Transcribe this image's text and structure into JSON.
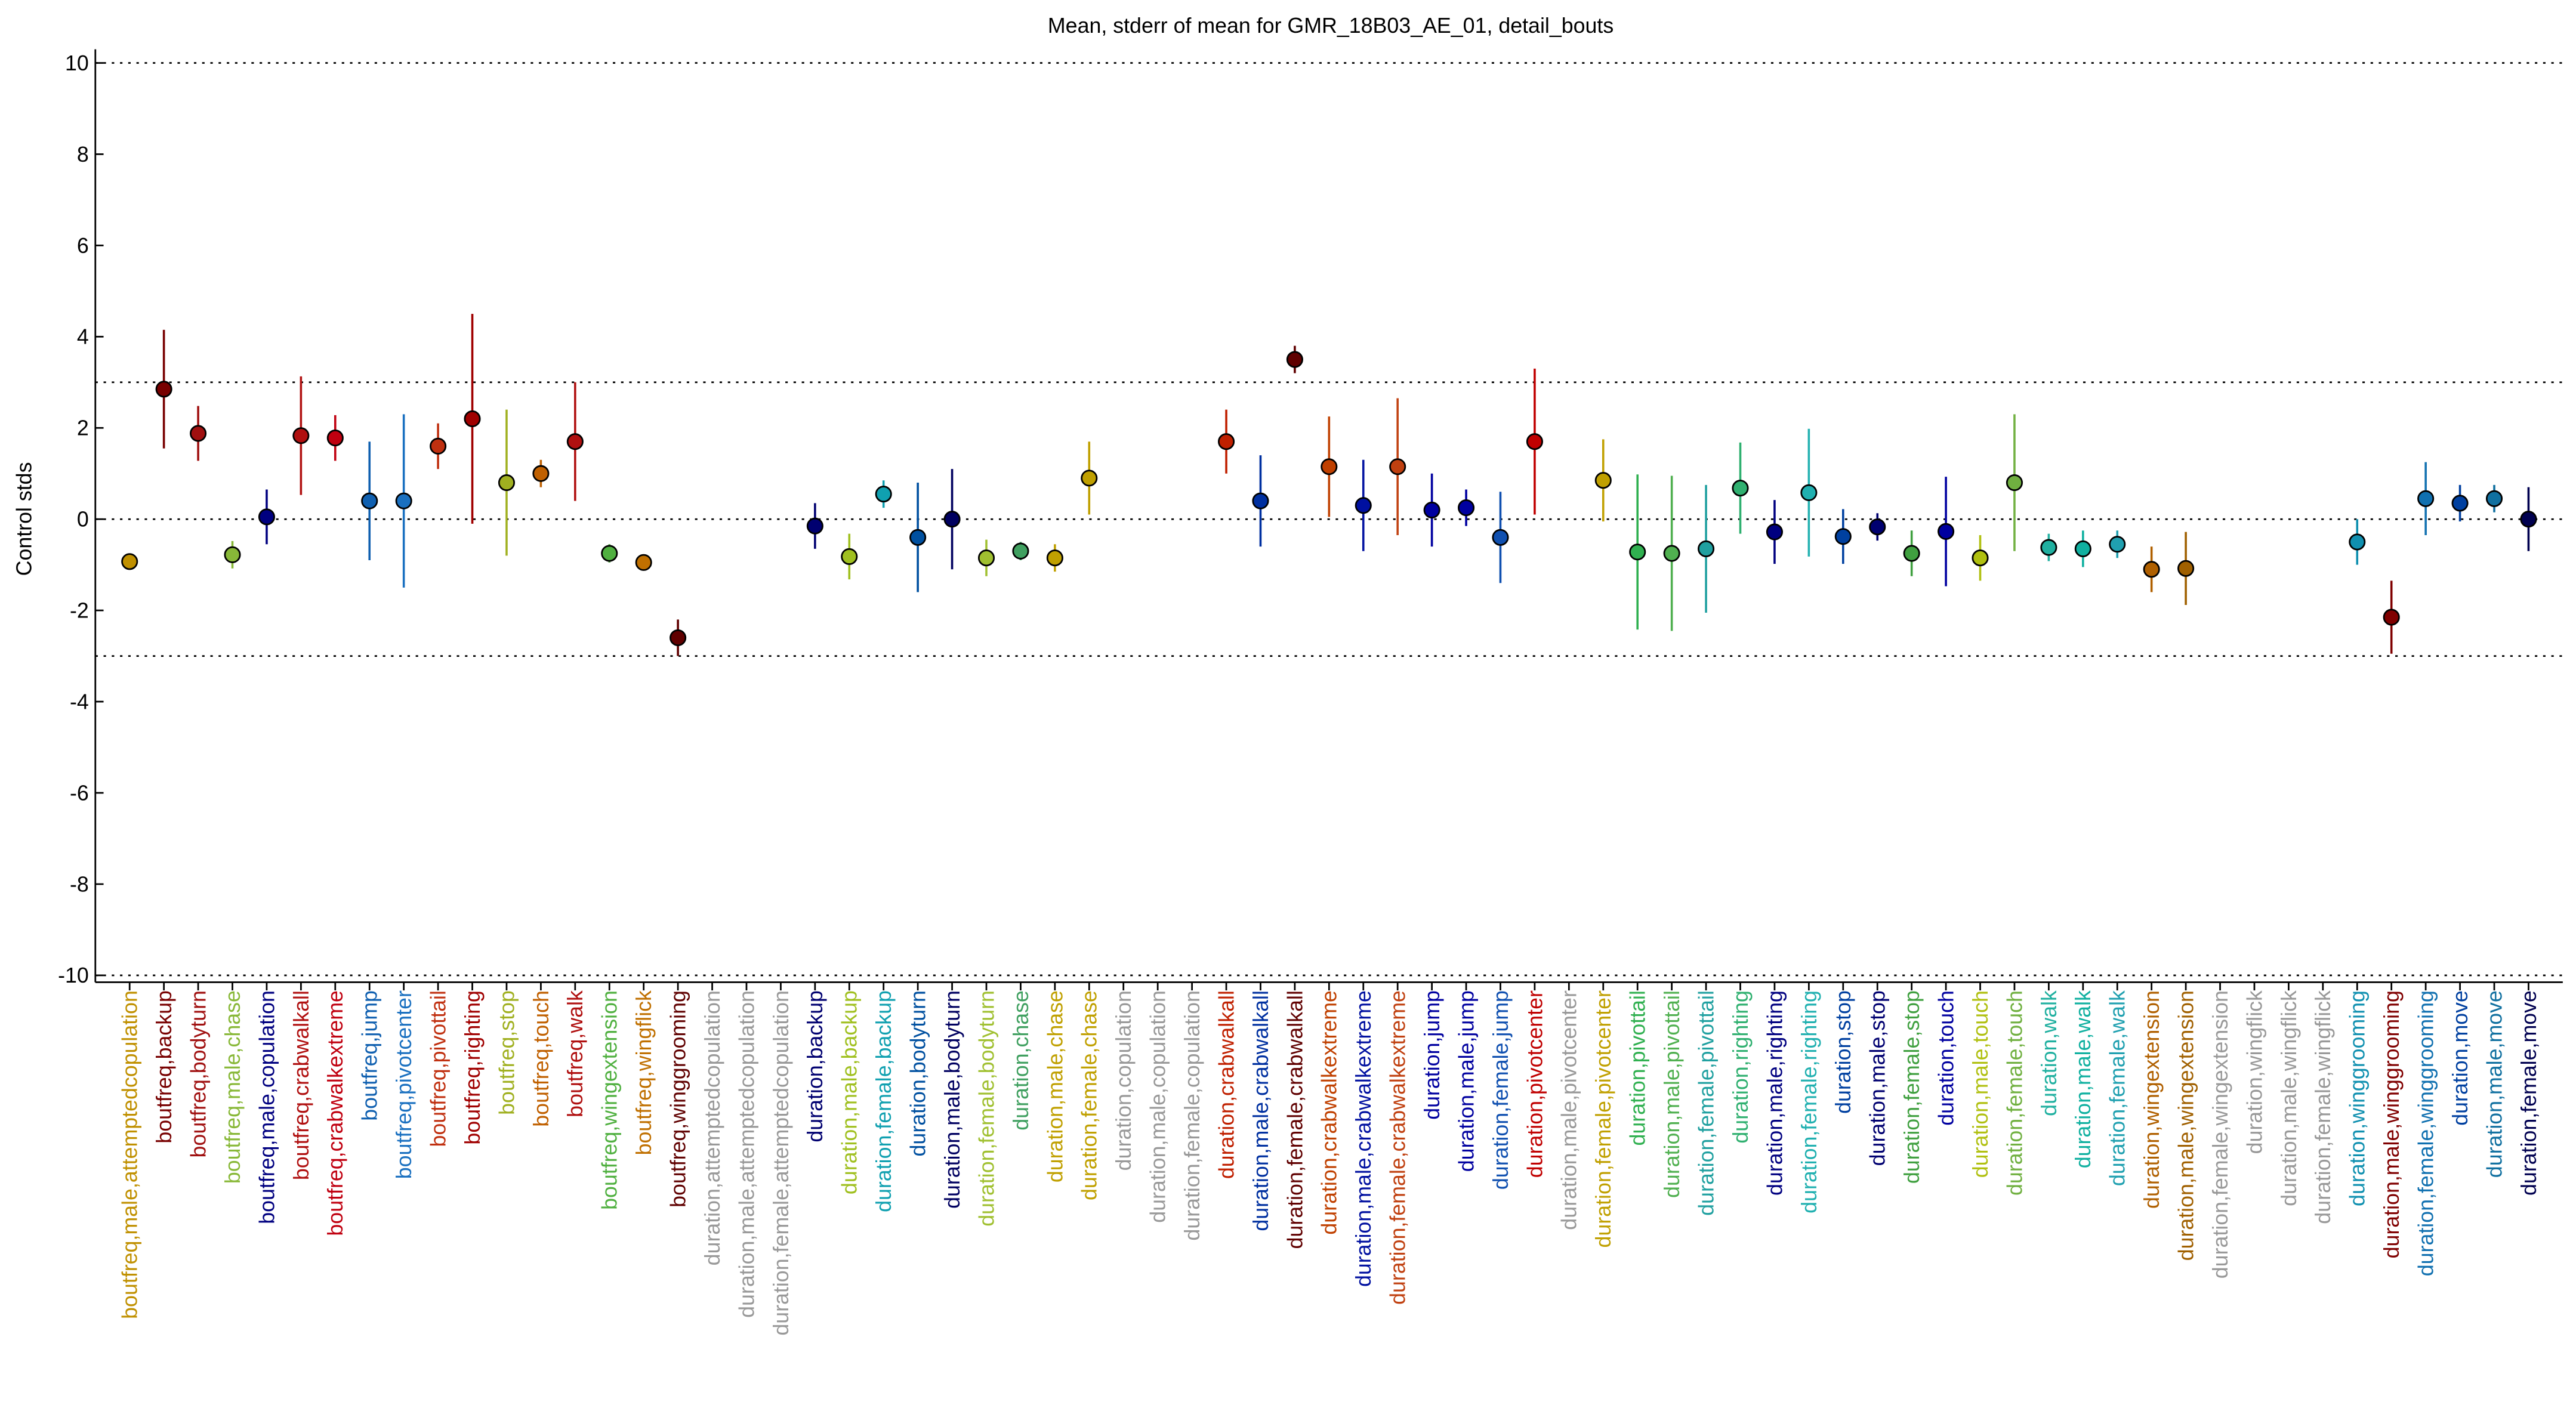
{
  "chart_data": {
    "type": "errorbar",
    "title": "Mean, stderr of mean for GMR_18B03_AE_01, detail_bouts",
    "ylabel": "Control stds",
    "xlim": [
      0,
      72
    ],
    "ylim": [
      -10.15,
      10.3
    ],
    "yticks": [
      -10,
      -8,
      -6,
      -4,
      -2,
      0,
      2,
      4,
      6,
      8,
      10
    ],
    "reference_lines": [
      -10,
      -3,
      0,
      3,
      10
    ],
    "categories": [
      "boutfreq,male,attemptedcopulation",
      "boutfreq,backup",
      "boutfreq,bodyturn",
      "boutfreq,male,chase",
      "boutfreq,male,copulation",
      "boutfreq,crabwalkall",
      "boutfreq,crabwalkextreme",
      "boutfreq,jump",
      "boutfreq,pivotcenter",
      "boutfreq,pivottail",
      "boutfreq,righting",
      "boutfreq,stop",
      "boutfreq,touch",
      "boutfreq,walk",
      "boutfreq,wingextension",
      "boutfreq,wingflick",
      "boutfreq,winggrooming",
      "duration,attemptedcopulation",
      "duration,male,attemptedcopulation",
      "duration,female,attemptedcopulation",
      "duration,backup",
      "duration,male,backup",
      "duration,female,backup",
      "duration,bodyturn",
      "duration,male,bodyturn",
      "duration,female,bodyturn",
      "duration,chase",
      "duration,male,chase",
      "duration,female,chase",
      "duration,copulation",
      "duration,male,copulation",
      "duration,female,copulation",
      "duration,crabwalkall",
      "duration,male,crabwalkall",
      "duration,female,crabwalkall",
      "duration,crabwalkextreme",
      "duration,male,crabwalkextreme",
      "duration,female,crabwalkextreme",
      "duration,jump",
      "duration,male,jump",
      "duration,female,jump",
      "duration,pivotcenter",
      "duration,male,pivotcenter",
      "duration,female,pivotcenter",
      "duration,pivottail",
      "duration,male,pivottail",
      "duration,female,pivottail",
      "duration,righting",
      "duration,male,righting",
      "duration,female,righting",
      "duration,stop",
      "duration,male,stop",
      "duration,female,stop",
      "duration,touch",
      "duration,male,touch",
      "duration,female,touch",
      "duration,walk",
      "duration,male,walk",
      "duration,female,walk",
      "duration,wingextension",
      "duration,male,wingextension",
      "duration,female,wingextension",
      "duration,wingflick",
      "duration,male,wingflick",
      "duration,female,wingflick",
      "duration,winggrooming",
      "duration,male,winggrooming",
      "duration,female,winggrooming",
      "duration,move",
      "duration,male,move",
      "duration,female,move"
    ],
    "values": [
      -0.93,
      2.85,
      1.88,
      -0.78,
      0.05,
      1.83,
      1.78,
      0.4,
      0.4,
      1.6,
      2.2,
      0.8,
      1.0,
      1.7,
      -0.75,
      -0.95,
      -2.6,
      null,
      null,
      null,
      -0.15,
      -0.82,
      0.55,
      -0.4,
      0.0,
      -0.85,
      -0.7,
      -0.85,
      0.9,
      null,
      null,
      null,
      1.7,
      0.4,
      3.5,
      1.15,
      0.3,
      1.15,
      0.2,
      0.25,
      -0.4,
      1.7,
      null,
      0.85,
      -0.72,
      -0.75,
      -0.65,
      0.68,
      -0.28,
      0.58,
      -0.38,
      -0.17,
      -0.75,
      -0.27,
      -0.85,
      0.8,
      -0.62,
      -0.65,
      -0.55,
      -1.1,
      -1.08,
      null,
      null,
      null,
      null,
      -0.5,
      -2.15,
      0.45,
      0.35,
      0.45,
      0.0
    ],
    "errors": [
      0.1,
      1.3,
      0.6,
      0.3,
      0.6,
      1.3,
      0.5,
      1.3,
      1.9,
      0.5,
      2.3,
      1.6,
      0.3,
      1.3,
      0.2,
      0.15,
      0.4,
      null,
      null,
      null,
      0.5,
      0.5,
      0.3,
      1.2,
      1.1,
      0.4,
      0.2,
      0.3,
      0.8,
      null,
      null,
      null,
      0.7,
      1.0,
      0.3,
      1.1,
      1.0,
      1.5,
      0.8,
      0.4,
      1.0,
      1.6,
      null,
      0.9,
      1.7,
      1.7,
      1.4,
      1.0,
      0.7,
      1.4,
      0.6,
      0.3,
      0.5,
      1.2,
      0.5,
      1.5,
      0.3,
      0.4,
      0.3,
      0.5,
      0.8,
      null,
      null,
      null,
      null,
      0.5,
      0.8,
      0.8,
      0.4,
      0.3,
      0.7
    ],
    "colors": [
      "#c09000",
      "#780000",
      "#a01010",
      "#88b838",
      "#000080",
      "#b01010",
      "#c00010",
      "#1060b0",
      "#1a70c0",
      "#c03010",
      "#a00000",
      "#a0b020",
      "#c06000",
      "#b01010",
      "#50b040",
      "#c07000",
      "#600000",
      "#999999",
      "#999999",
      "#999999",
      "#000070",
      "#a0c020",
      "#10a0b0",
      "#0050a0",
      "#000060",
      "#a0c030",
      "#40a060",
      "#c0a000",
      "#c0a000",
      "#999999",
      "#999999",
      "#999999",
      "#c02000",
      "#0030a0",
      "#600000",
      "#c04000",
      "#0010a0",
      "#c04010",
      "#0000a0",
      "#0000a0",
      "#1050b0",
      "#c00000",
      "#999999",
      "#c0a000",
      "#30b050",
      "#50b050",
      "#20a0a0",
      "#30b070",
      "#000080",
      "#20b0b0",
      "#0040a0",
      "#000070",
      "#40a040",
      "#0000a0",
      "#b0c010",
      "#70b040",
      "#20b0a0",
      "#10b0a0",
      "#20a0b0",
      "#b06000",
      "#a06000",
      "#999999",
      "#999999",
      "#999999",
      "#999999",
      "#1090b0",
      "#800000",
      "#1070b0",
      "#0040a0",
      "#1070a0",
      "#000050"
    ]
  }
}
